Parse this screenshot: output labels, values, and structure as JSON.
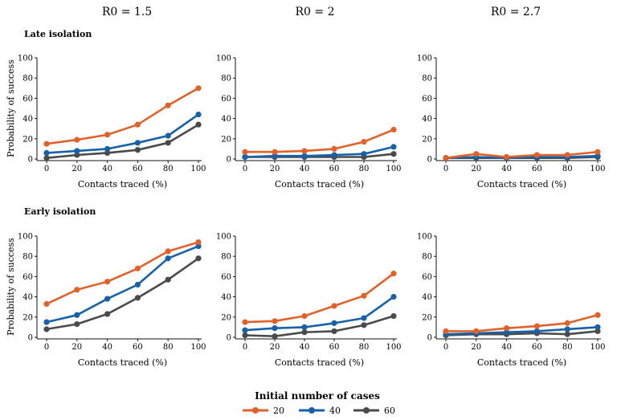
{
  "column_titles": [
    "R0 = 1.5",
    "R0 = 2",
    "R0 = 2.7"
  ],
  "row_titles": [
    "Late isolation",
    "Early isolation"
  ],
  "xlabel": "Contacts traced (%)",
  "ylabel": "Probability of success",
  "legend": {
    "title": "Initial number of cases",
    "items": [
      "20",
      "40",
      "60"
    ]
  },
  "colors": {
    "20": "#e0622a",
    "40": "#1761a9",
    "60": "#4a4a4a"
  },
  "chart_data": [
    {
      "type": "line",
      "row": "Late isolation",
      "column": "R0 = 1.5",
      "x": [
        0,
        20,
        40,
        60,
        80,
        100
      ],
      "xlim": [
        0,
        100
      ],
      "ylim": [
        0,
        100
      ],
      "xticks": [
        0,
        20,
        40,
        60,
        80,
        100
      ],
      "yticks": [
        0,
        20,
        40,
        60,
        80,
        100
      ],
      "series": [
        {
          "name": "20",
          "values": [
            15,
            19,
            24,
            34,
            53,
            70
          ]
        },
        {
          "name": "40",
          "values": [
            6,
            8,
            10,
            16,
            23,
            44
          ]
        },
        {
          "name": "60",
          "values": [
            1,
            4,
            6,
            9,
            16,
            34
          ]
        }
      ]
    },
    {
      "type": "line",
      "row": "Late isolation",
      "column": "R0 = 2",
      "x": [
        0,
        20,
        40,
        60,
        80,
        100
      ],
      "xlim": [
        0,
        100
      ],
      "ylim": [
        0,
        100
      ],
      "xticks": [
        0,
        20,
        40,
        60,
        80,
        100
      ],
      "yticks": [
        0,
        20,
        40,
        60,
        80,
        100
      ],
      "series": [
        {
          "name": "20",
          "values": [
            7,
            7,
            8,
            10,
            17,
            29
          ]
        },
        {
          "name": "40",
          "values": [
            2,
            3,
            3,
            4,
            5,
            12
          ]
        },
        {
          "name": "60",
          "values": [
            2,
            2,
            2,
            2,
            2,
            5
          ]
        }
      ]
    },
    {
      "type": "line",
      "row": "Late isolation",
      "column": "R0 = 2.7",
      "x": [
        0,
        20,
        40,
        60,
        80,
        100
      ],
      "xlim": [
        0,
        100
      ],
      "ylim": [
        0,
        100
      ],
      "xticks": [
        0,
        20,
        40,
        60,
        80,
        100
      ],
      "yticks": [
        0,
        20,
        40,
        60,
        80,
        100
      ],
      "series": [
        {
          "name": "20",
          "values": [
            1,
            5,
            2,
            4,
            4,
            7
          ]
        },
        {
          "name": "40",
          "values": [
            1,
            2,
            1,
            2,
            2,
            3
          ]
        },
        {
          "name": "60",
          "values": [
            1,
            1,
            1,
            1,
            1,
            2
          ]
        }
      ]
    },
    {
      "type": "line",
      "row": "Early isolation",
      "column": "R0 = 1.5",
      "x": [
        0,
        20,
        40,
        60,
        80,
        100
      ],
      "xlim": [
        0,
        100
      ],
      "ylim": [
        0,
        100
      ],
      "xticks": [
        0,
        20,
        40,
        60,
        80,
        100
      ],
      "yticks": [
        0,
        20,
        40,
        60,
        80,
        100
      ],
      "series": [
        {
          "name": "20",
          "values": [
            33,
            47,
            55,
            68,
            85,
            94
          ]
        },
        {
          "name": "40",
          "values": [
            15,
            22,
            38,
            52,
            78,
            90
          ]
        },
        {
          "name": "60",
          "values": [
            8,
            13,
            23,
            39,
            57,
            78
          ]
        }
      ]
    },
    {
      "type": "line",
      "row": "Early isolation",
      "column": "R0 = 2",
      "x": [
        0,
        20,
        40,
        60,
        80,
        100
      ],
      "xlim": [
        0,
        100
      ],
      "ylim": [
        0,
        100
      ],
      "xticks": [
        0,
        20,
        40,
        60,
        80,
        100
      ],
      "yticks": [
        0,
        20,
        40,
        60,
        80,
        100
      ],
      "series": [
        {
          "name": "20",
          "values": [
            15,
            16,
            21,
            31,
            41,
            63
          ]
        },
        {
          "name": "40",
          "values": [
            7,
            9,
            10,
            14,
            19,
            40
          ]
        },
        {
          "name": "60",
          "values": [
            2,
            1,
            5,
            6,
            12,
            21
          ]
        }
      ]
    },
    {
      "type": "line",
      "row": "Early isolation",
      "column": "R0 = 2.7",
      "x": [
        0,
        20,
        40,
        60,
        80,
        100
      ],
      "xlim": [
        0,
        100
      ],
      "ylim": [
        0,
        100
      ],
      "xticks": [
        0,
        20,
        40,
        60,
        80,
        100
      ],
      "yticks": [
        0,
        20,
        40,
        60,
        80,
        100
      ],
      "series": [
        {
          "name": "20",
          "values": [
            6,
            6,
            9,
            11,
            14,
            22
          ]
        },
        {
          "name": "40",
          "values": [
            3,
            4,
            5,
            6,
            8,
            10
          ]
        },
        {
          "name": "60",
          "values": [
            2,
            3,
            3,
            4,
            3,
            6
          ]
        }
      ]
    }
  ]
}
